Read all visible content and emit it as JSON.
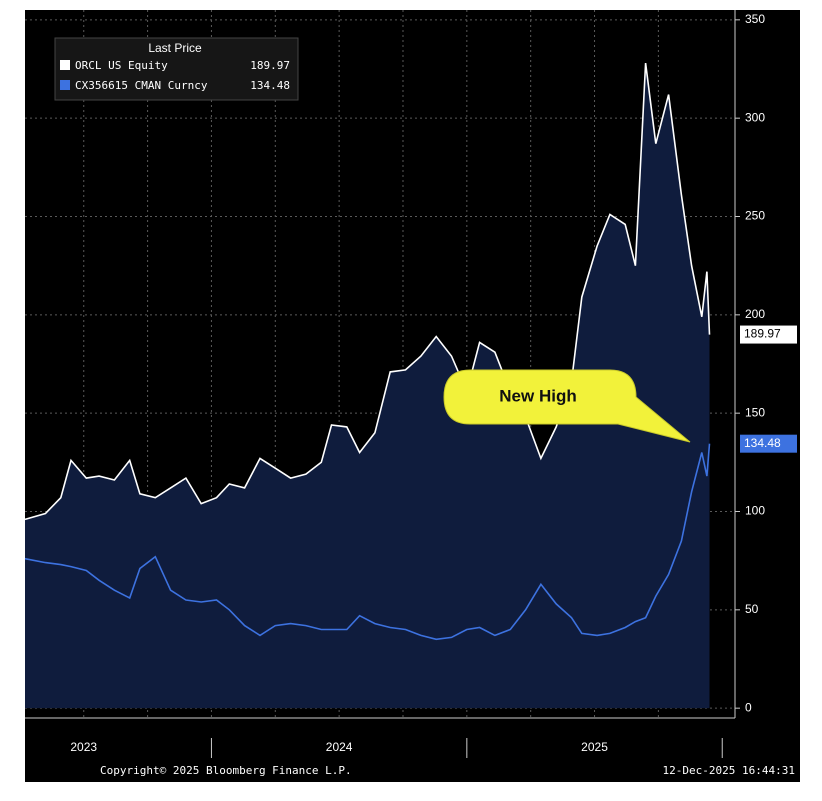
{
  "chart_data": {
    "type": "line",
    "legend_title": "Last Price",
    "annotation": "New High",
    "footer_left": "Copyright© 2025 Bloomberg Finance L.P.",
    "footer_right": "12-Dec-2025 16:44:31",
    "x": [
      2023.27,
      2023.35,
      2023.41,
      2023.45,
      2023.51,
      2023.56,
      2023.62,
      2023.68,
      2023.72,
      2023.78,
      2023.84,
      2023.9,
      2023.96,
      2024.02,
      2024.07,
      2024.13,
      2024.19,
      2024.25,
      2024.31,
      2024.37,
      2024.43,
      2024.47,
      2024.53,
      2024.58,
      2024.64,
      2024.7,
      2024.76,
      2024.82,
      2024.88,
      2024.94,
      2025.0,
      2025.05,
      2025.11,
      2025.17,
      2025.23,
      2025.29,
      2025.35,
      2025.41,
      2025.45,
      2025.51,
      2025.56,
      2025.62,
      2025.66,
      2025.7,
      2025.74,
      2025.79,
      2025.84,
      2025.88,
      2025.92,
      2025.94,
      2025.95
    ],
    "xlim": [
      2023.27,
      2026.05
    ],
    "xticks": [
      2023.5,
      2023.75,
      2024,
      2024.25,
      2024.5,
      2024.75,
      2025,
      2025.25,
      2025.5,
      2025.75
    ],
    "x_separators": [
      2024,
      2025,
      2026
    ],
    "x_year_labels": [
      {
        "value": 2023.5,
        "label": "2023"
      },
      {
        "value": 2024.5,
        "label": "2024"
      },
      {
        "value": 2025.5,
        "label": "2025"
      }
    ],
    "ylim": [
      -5,
      355
    ],
    "yticks": [
      0,
      50,
      100,
      150,
      200,
      250,
      300,
      350
    ],
    "grid": true,
    "series": [
      {
        "name": "ORCL US Equity",
        "color": "#ffffff",
        "fill": "#0f1c3d",
        "values": [
          96,
          99,
          107,
          126,
          117,
          118,
          116,
          126,
          109,
          107,
          112,
          117,
          104,
          107,
          114,
          112,
          127,
          122,
          117,
          119,
          125,
          144,
          143,
          130,
          140,
          171,
          172,
          179,
          189,
          179,
          161,
          186,
          181,
          161,
          148,
          127,
          143,
          166,
          209,
          235,
          251,
          246,
          225,
          328,
          287,
          312,
          261,
          225,
          199,
          222,
          189.97
        ]
      },
      {
        "name": "CX356615 CMAN Curncy",
        "color": "#3d72e0",
        "values": [
          76,
          74,
          73,
          72,
          70,
          65,
          60,
          56,
          71,
          77,
          60,
          55,
          54,
          55,
          50,
          42,
          37,
          42,
          43,
          42,
          40,
          40,
          40,
          47,
          43,
          41,
          40,
          37,
          35,
          36,
          40,
          41,
          37,
          40,
          50,
          63,
          53,
          46,
          38,
          37,
          38,
          41,
          44,
          46,
          57,
          68,
          85,
          110,
          130,
          118,
          134.48
        ]
      }
    ]
  }
}
